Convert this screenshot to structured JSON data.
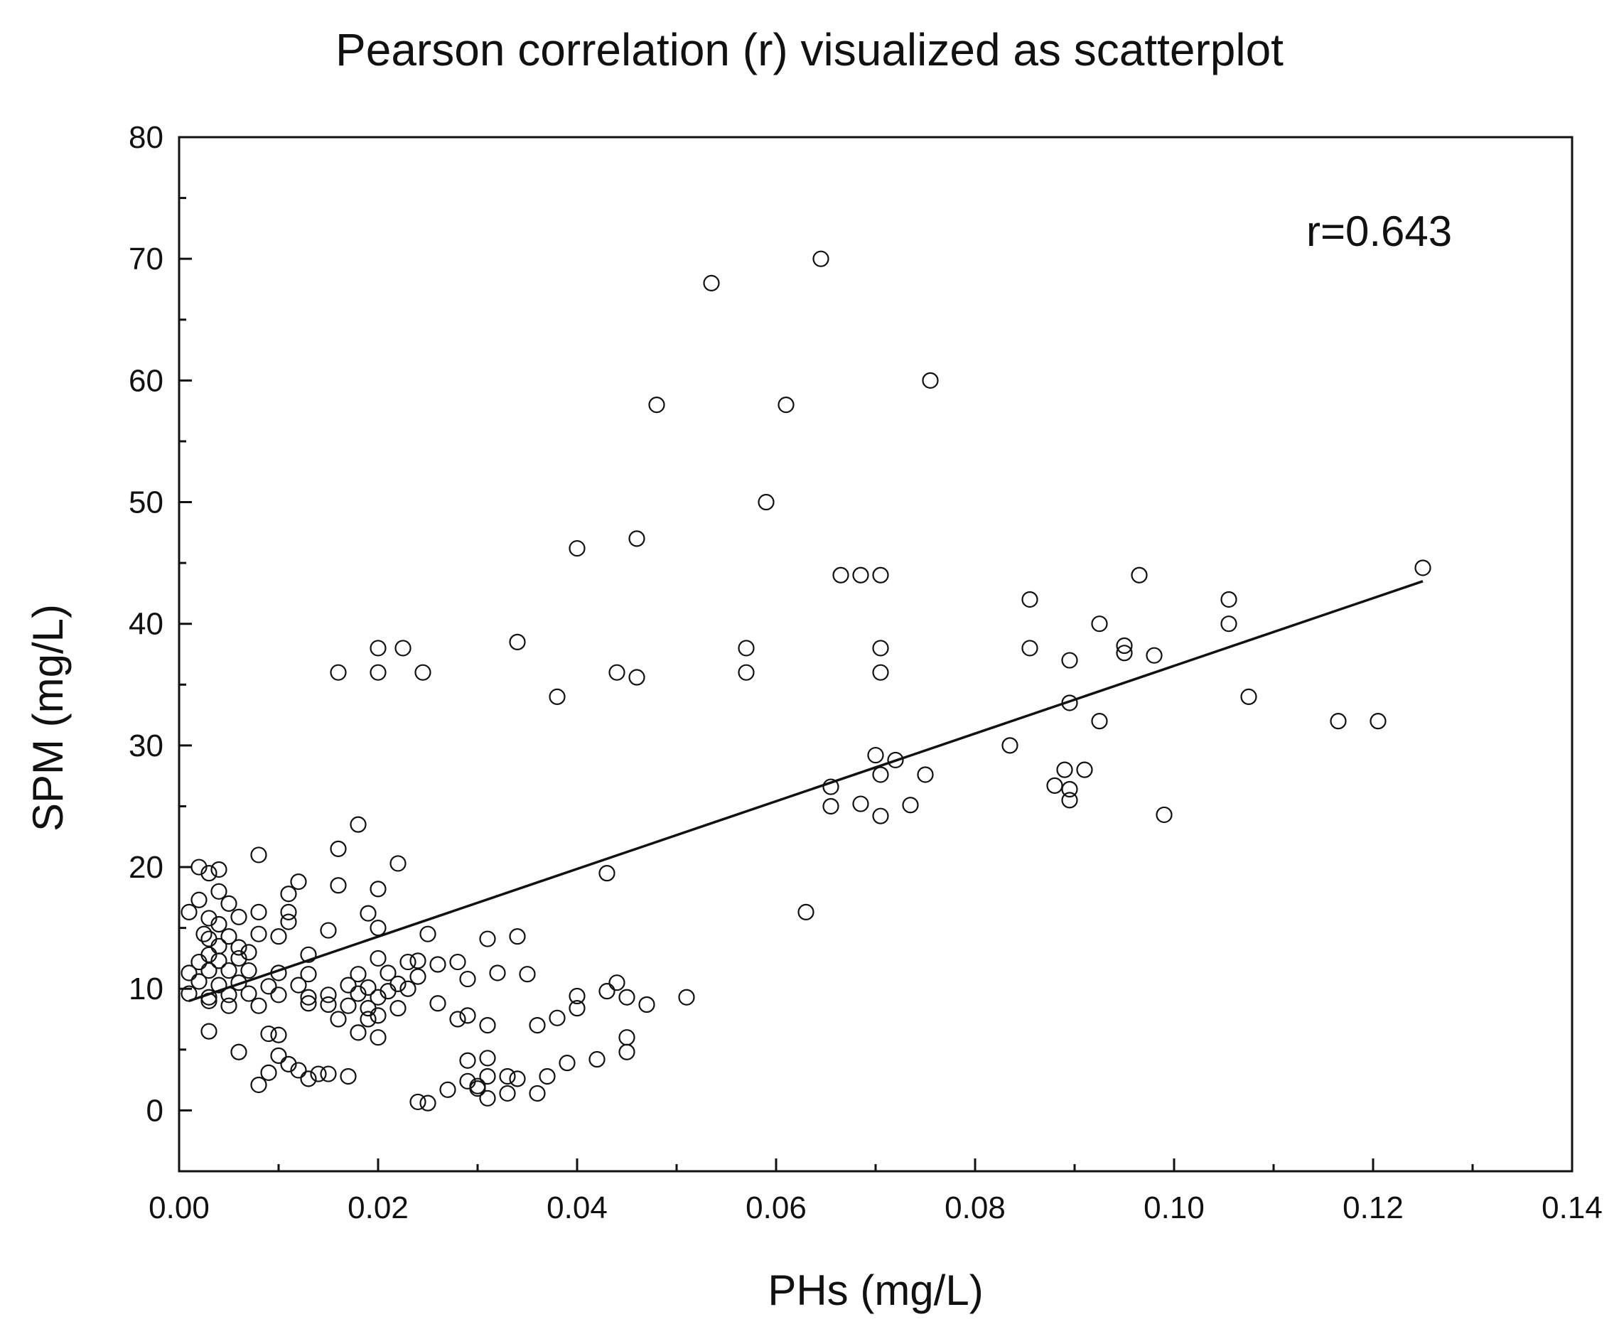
{
  "chart_data": {
    "type": "scatter",
    "title": "Pearson correlation (r) visualized as scatterplot",
    "xlabel": "PHs (mg/L)",
    "ylabel": "SPM (mg/L)",
    "xlim": [
      0.0,
      0.14
    ],
    "ylim": [
      -5,
      80
    ],
    "xticks": [
      {
        "value": 0.0,
        "label": "0.00"
      },
      {
        "value": 0.02,
        "label": "0.02"
      },
      {
        "value": 0.04,
        "label": "0.04"
      },
      {
        "value": 0.06,
        "label": "0.06"
      },
      {
        "value": 0.08,
        "label": "0.08"
      },
      {
        "value": 0.1,
        "label": "0.10"
      },
      {
        "value": 0.12,
        "label": "0.12"
      },
      {
        "value": 0.14,
        "label": "0.14"
      }
    ],
    "yticks": [
      {
        "value": 0,
        "label": "0"
      },
      {
        "value": 10,
        "label": "10"
      },
      {
        "value": 20,
        "label": "20"
      },
      {
        "value": 30,
        "label": "30"
      },
      {
        "value": 40,
        "label": "40"
      },
      {
        "value": 50,
        "label": "50"
      },
      {
        "value": 60,
        "label": "60"
      },
      {
        "value": 70,
        "label": "70"
      },
      {
        "value": 80,
        "label": "80"
      }
    ],
    "grid": false,
    "annotation": "r=0.643",
    "trendline": {
      "x": [
        0.001,
        0.125
      ],
      "y": [
        9.0,
        43.5
      ]
    },
    "series": [
      {
        "name": "SPM vs PHs",
        "marker": "open-circle",
        "points": [
          [
            0.0535,
            68
          ],
          [
            0.0645,
            70
          ],
          [
            0.048,
            58
          ],
          [
            0.061,
            58
          ],
          [
            0.0755,
            60
          ],
          [
            0.059,
            50
          ],
          [
            0.04,
            46.2
          ],
          [
            0.046,
            47
          ],
          [
            0.0665,
            44
          ],
          [
            0.0685,
            44
          ],
          [
            0.0705,
            44
          ],
          [
            0.0965,
            44
          ],
          [
            0.125,
            44.6
          ],
          [
            0.0855,
            42
          ],
          [
            0.1055,
            42
          ],
          [
            0.0925,
            40
          ],
          [
            0.1055,
            40
          ],
          [
            0.02,
            38
          ],
          [
            0.0225,
            38
          ],
          [
            0.034,
            38.5
          ],
          [
            0.057,
            38
          ],
          [
            0.0705,
            38
          ],
          [
            0.0855,
            38
          ],
          [
            0.095,
            38.2
          ],
          [
            0.095,
            37.6
          ],
          [
            0.098,
            37.4
          ],
          [
            0.0895,
            37
          ],
          [
            0.016,
            36
          ],
          [
            0.02,
            36
          ],
          [
            0.0245,
            36
          ],
          [
            0.044,
            36
          ],
          [
            0.046,
            35.6
          ],
          [
            0.057,
            36
          ],
          [
            0.0705,
            36
          ],
          [
            0.038,
            34
          ],
          [
            0.1075,
            34
          ],
          [
            0.0895,
            33.5
          ],
          [
            0.0925,
            32
          ],
          [
            0.1165,
            32
          ],
          [
            0.1205,
            32
          ],
          [
            0.0835,
            30
          ],
          [
            0.07,
            29.2
          ],
          [
            0.072,
            28.8
          ],
          [
            0.0705,
            27.6
          ],
          [
            0.075,
            27.6
          ],
          [
            0.089,
            28
          ],
          [
            0.091,
            28
          ],
          [
            0.0655,
            26.6
          ],
          [
            0.088,
            26.7
          ],
          [
            0.0895,
            26.4
          ],
          [
            0.0895,
            25.5
          ],
          [
            0.0655,
            25
          ],
          [
            0.0685,
            25.2
          ],
          [
            0.0735,
            25.1
          ],
          [
            0.0705,
            24.2
          ],
          [
            0.099,
            24.3
          ],
          [
            0.063,
            16.3
          ],
          [
            0.043,
            19.5
          ],
          [
            0.018,
            23.5
          ],
          [
            0.016,
            21.5
          ],
          [
            0.022,
            20.3
          ],
          [
            0.008,
            21
          ],
          [
            0.002,
            20
          ],
          [
            0.004,
            19.8
          ],
          [
            0.003,
            19.5
          ],
          [
            0.012,
            18.8
          ],
          [
            0.016,
            18.5
          ],
          [
            0.02,
            18.2
          ],
          [
            0.004,
            18
          ],
          [
            0.011,
            17.8
          ],
          [
            0.002,
            17.3
          ],
          [
            0.005,
            17
          ],
          [
            0.001,
            16.3
          ],
          [
            0.008,
            16.3
          ],
          [
            0.011,
            16.3
          ],
          [
            0.003,
            15.8
          ],
          [
            0.006,
            15.9
          ],
          [
            0.019,
            16.2
          ],
          [
            0.004,
            15.3
          ],
          [
            0.011,
            15.5
          ],
          [
            0.02,
            15
          ],
          [
            0.015,
            14.8
          ],
          [
            0.0025,
            14.5
          ],
          [
            0.003,
            14.1
          ],
          [
            0.005,
            14.3
          ],
          [
            0.008,
            14.5
          ],
          [
            0.01,
            14.3
          ],
          [
            0.025,
            14.5
          ],
          [
            0.031,
            14.1
          ],
          [
            0.034,
            14.3
          ],
          [
            0.004,
            13.5
          ],
          [
            0.006,
            13.4
          ],
          [
            0.003,
            12.8
          ],
          [
            0.007,
            13
          ],
          [
            0.013,
            12.8
          ],
          [
            0.002,
            12.2
          ],
          [
            0.004,
            12.3
          ],
          [
            0.006,
            12.5
          ],
          [
            0.02,
            12.5
          ],
          [
            0.023,
            12.2
          ],
          [
            0.024,
            12.3
          ],
          [
            0.026,
            12
          ],
          [
            0.028,
            12.2
          ],
          [
            0.001,
            11.3
          ],
          [
            0.003,
            11.5
          ],
          [
            0.005,
            11.5
          ],
          [
            0.007,
            11.5
          ],
          [
            0.01,
            11.3
          ],
          [
            0.013,
            11.2
          ],
          [
            0.018,
            11.2
          ],
          [
            0.021,
            11.3
          ],
          [
            0.024,
            11
          ],
          [
            0.029,
            10.8
          ],
          [
            0.032,
            11.3
          ],
          [
            0.035,
            11.2
          ],
          [
            0.002,
            10.6
          ],
          [
            0.004,
            10.3
          ],
          [
            0.006,
            10.5
          ],
          [
            0.009,
            10.2
          ],
          [
            0.012,
            10.3
          ],
          [
            0.017,
            10.3
          ],
          [
            0.019,
            10.1
          ],
          [
            0.022,
            10.4
          ],
          [
            0.023,
            10
          ],
          [
            0.044,
            10.5
          ],
          [
            0.001,
            9.6
          ],
          [
            0.003,
            9.3
          ],
          [
            0.005,
            9.5
          ],
          [
            0.007,
            9.6
          ],
          [
            0.01,
            9.5
          ],
          [
            0.013,
            9.3
          ],
          [
            0.015,
            9.5
          ],
          [
            0.018,
            9.6
          ],
          [
            0.02,
            9.3
          ],
          [
            0.021,
            9.8
          ],
          [
            0.04,
            9.4
          ],
          [
            0.043,
            9.8
          ],
          [
            0.045,
            9.3
          ],
          [
            0.051,
            9.3
          ],
          [
            0.003,
            9
          ],
          [
            0.005,
            8.6
          ],
          [
            0.008,
            8.6
          ],
          [
            0.013,
            8.8
          ],
          [
            0.015,
            8.7
          ],
          [
            0.017,
            8.6
          ],
          [
            0.019,
            8.4
          ],
          [
            0.022,
            8.4
          ],
          [
            0.026,
            8.8
          ],
          [
            0.04,
            8.4
          ],
          [
            0.047,
            8.7
          ],
          [
            0.016,
            7.5
          ],
          [
            0.019,
            7.5
          ],
          [
            0.02,
            7.8
          ],
          [
            0.028,
            7.5
          ],
          [
            0.029,
            7.8
          ],
          [
            0.031,
            7
          ],
          [
            0.036,
            7
          ],
          [
            0.038,
            7.6
          ],
          [
            0.003,
            6.5
          ],
          [
            0.009,
            6.3
          ],
          [
            0.01,
            6.2
          ],
          [
            0.018,
            6.4
          ],
          [
            0.02,
            6
          ],
          [
            0.045,
            6
          ],
          [
            0.006,
            4.8
          ],
          [
            0.01,
            4.5
          ],
          [
            0.011,
            3.8
          ],
          [
            0.029,
            4.1
          ],
          [
            0.031,
            4.3
          ],
          [
            0.039,
            3.9
          ],
          [
            0.042,
            4.2
          ],
          [
            0.045,
            4.8
          ],
          [
            0.009,
            3.1
          ],
          [
            0.012,
            3.3
          ],
          [
            0.013,
            2.6
          ],
          [
            0.014,
            3
          ],
          [
            0.015,
            3
          ],
          [
            0.017,
            2.8
          ],
          [
            0.029,
            2.4
          ],
          [
            0.03,
            2
          ],
          [
            0.031,
            2.8
          ],
          [
            0.033,
            2.8
          ],
          [
            0.034,
            2.6
          ],
          [
            0.037,
            2.8
          ],
          [
            0.008,
            2.1
          ],
          [
            0.027,
            1.7
          ],
          [
            0.03,
            1.8
          ],
          [
            0.031,
            1
          ],
          [
            0.033,
            1.4
          ],
          [
            0.036,
            1.4
          ],
          [
            0.024,
            0.7
          ],
          [
            0.025,
            0.6
          ]
        ]
      }
    ]
  }
}
